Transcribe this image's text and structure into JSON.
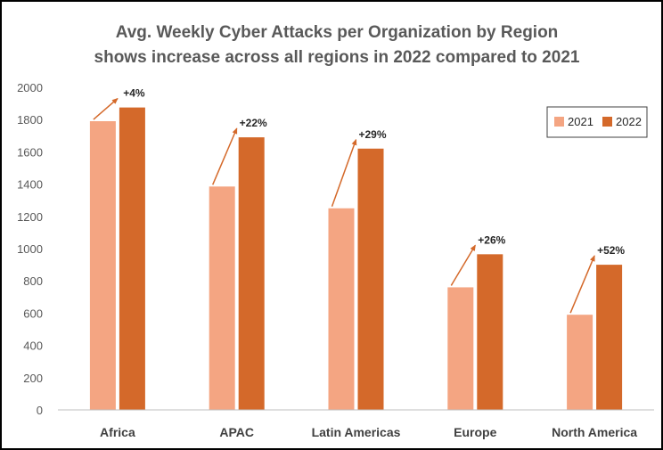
{
  "chart_data": {
    "type": "bar",
    "title": "Avg. Weekly Cyber Attacks per Organization by Region",
    "subtitle": "shows increase across all regions in 2022 compared to 2021",
    "categories": [
      "Africa",
      "APAC",
      "Latin Americas",
      "Europe",
      "North America"
    ],
    "series": [
      {
        "name": "2021",
        "values": [
          1790,
          1385,
          1250,
          760,
          590
        ],
        "color": "#f4a582"
      },
      {
        "name": "2022",
        "values": [
          1875,
          1690,
          1620,
          965,
          900
        ],
        "color": "#d4692a"
      }
    ],
    "annotations": [
      "+4%",
      "+22%",
      "+29%",
      "+26%",
      "+52%"
    ],
    "annotation_arrow_color": "#d4692a",
    "xlabel": "",
    "ylabel": "",
    "ylim": [
      0,
      2000
    ],
    "yticks": [
      0,
      200,
      400,
      600,
      800,
      1000,
      1200,
      1400,
      1600,
      1800,
      2000
    ],
    "grid": false,
    "legend": "top-right"
  }
}
